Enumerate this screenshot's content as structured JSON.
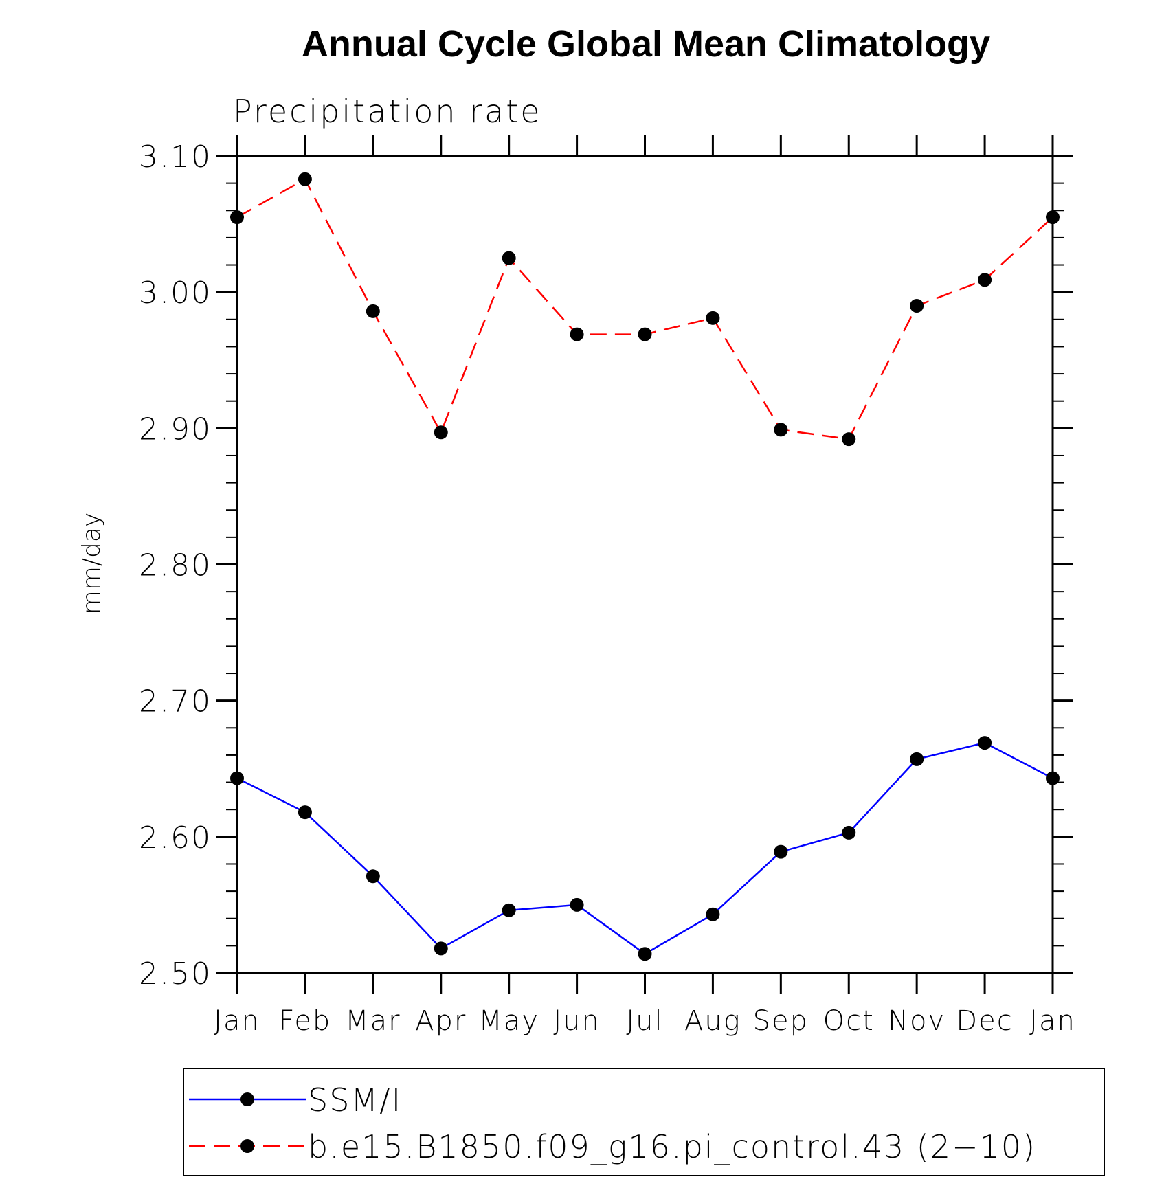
{
  "chart_data": {
    "type": "line",
    "title": "Annual Cycle Global Mean Climatology",
    "subtitle": "Precipitation rate",
    "ylabel": "mm/day",
    "xlabel": "",
    "categories": [
      "Jan",
      "Feb",
      "Mar",
      "Apr",
      "May",
      "Jun",
      "Jul",
      "Aug",
      "Sep",
      "Oct",
      "Nov",
      "Dec",
      "Jan"
    ],
    "ylim": [
      2.5,
      3.1
    ],
    "yticks": [
      {
        "value": 2.5,
        "label": "2.50"
      },
      {
        "value": 2.6,
        "label": "2.60"
      },
      {
        "value": 2.7,
        "label": "2.70"
      },
      {
        "value": 2.8,
        "label": "2.80"
      },
      {
        "value": 2.9,
        "label": "2.90"
      },
      {
        "value": 3.0,
        "label": "3.00"
      },
      {
        "value": 3.1,
        "label": "3.10"
      }
    ],
    "grid": false,
    "legend_position": "bottom",
    "series": [
      {
        "name": "SSM/I",
        "color": "#0000ff",
        "dash": "solid",
        "marker": "filled-circle",
        "marker_color": "#000000",
        "values": [
          2.643,
          2.618,
          2.571,
          2.518,
          2.546,
          2.55,
          2.514,
          2.543,
          2.589,
          2.603,
          2.657,
          2.669,
          2.643
        ]
      },
      {
        "name": "b.e15.B1850.f09_g16.pi_control.43 (2−10)",
        "color": "#ff0000",
        "dash": "dashed",
        "marker": "filled-circle",
        "marker_color": "#000000",
        "values": [
          3.055,
          3.083,
          2.986,
          2.897,
          3.025,
          2.969,
          2.969,
          2.981,
          2.899,
          2.892,
          2.99,
          3.009,
          3.055
        ]
      }
    ]
  }
}
